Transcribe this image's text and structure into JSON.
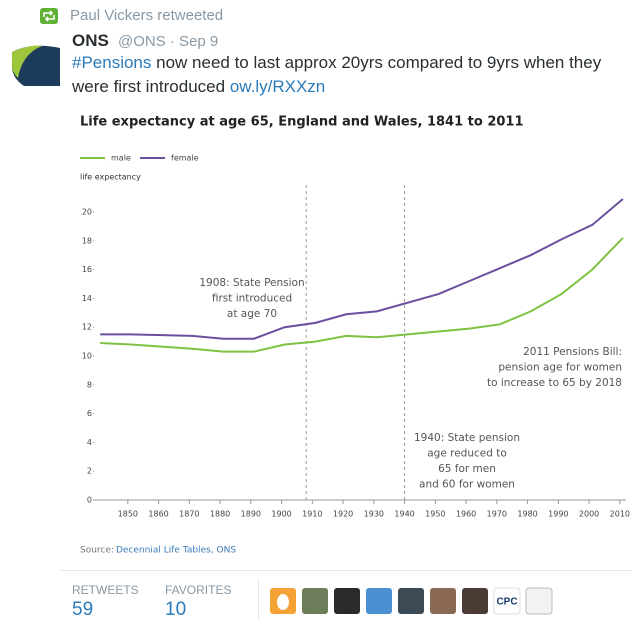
{
  "tweet": {
    "retweeted_by": "Paul Vickers retweeted",
    "author": "ONS",
    "handle_date": "@ONS · Sep 9",
    "hashtag": "#Pensions",
    "text_line1": "now need to last approx 20yrs compared to 9yrs when they",
    "text_line2": "were first introduced",
    "link": "ow.ly/RXXzn"
  },
  "chart_data": {
    "type": "line",
    "title": "Life expectancy at age 65, England and Wales, 1841 to 2011",
    "y_label": "life expectancy",
    "legend": "top-left",
    "x": [
      1841,
      1851,
      1871,
      1881,
      1891,
      1901,
      1911,
      1921,
      1931,
      1951,
      1961,
      1971,
      1981,
      1991,
      2001,
      2011
    ],
    "series": [
      {
        "name": "male",
        "color": "#7dc242",
        "values": [
          10.9,
          10.8,
          10.5,
          10.3,
          10.3,
          10.8,
          11.0,
          11.4,
          11.3,
          11.7,
          11.9,
          12.2,
          13.1,
          14.3,
          16.0,
          18.2
        ]
      },
      {
        "name": "female",
        "color": "#6b4f9e",
        "values": [
          11.5,
          11.5,
          11.4,
          11.2,
          11.2,
          12.0,
          12.3,
          12.9,
          13.1,
          14.3,
          15.2,
          16.1,
          17.0,
          18.1,
          19.1,
          20.9
        ]
      }
    ],
    "xlim": [
      1839,
      2012
    ],
    "ylim": [
      0,
      21.5
    ],
    "xticks": [
      1850,
      1860,
      1870,
      1880,
      1890,
      1900,
      1910,
      1920,
      1930,
      1940,
      1950,
      1960,
      1970,
      1980,
      1990,
      2000,
      2010
    ],
    "yticks": [
      0,
      2,
      4,
      6,
      8,
      10,
      12,
      14,
      16,
      18,
      20
    ],
    "vlines": [
      1908,
      1940
    ],
    "annotations": [
      {
        "lines": [
          "1908: State Pension",
          "first introduced",
          "at age 70"
        ]
      },
      {
        "lines": [
          "2011 Pensions Bill:",
          "pension age for women",
          "to increase to 65 by 2018"
        ]
      },
      {
        "lines": [
          "1940: State pension",
          "age reduced to",
          "65 for men",
          "and 60 for women"
        ]
      }
    ],
    "source_label": "Source:",
    "source": "Decennial Life Tables, ONS"
  },
  "engagement": {
    "retweets_label": "RETWEETS",
    "retweets": 59,
    "favorites_label": "FAVORITES",
    "favorites": 10,
    "avatar_label": "CPC"
  }
}
